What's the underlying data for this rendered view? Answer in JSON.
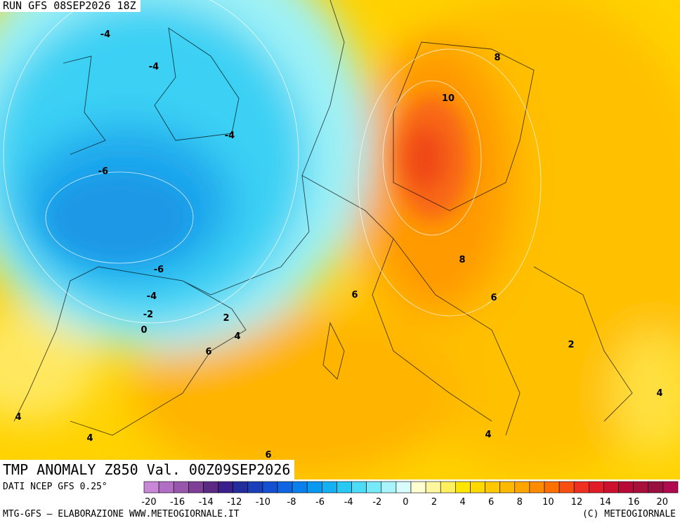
{
  "header": {
    "run": "RUN GFS 08SEP2026 18Z"
  },
  "map": {
    "title": "TMP ANOMALY Z850 Val. 00Z09SEP2026",
    "contour_labels": [
      -4,
      -4,
      -4,
      -6,
      -6,
      -4,
      -2,
      0,
      2,
      4,
      6,
      6,
      8,
      10,
      8,
      6,
      2,
      4,
      4,
      4,
      4,
      6
    ]
  },
  "legend": {
    "source": "DATI NCEP GFS 0.25°",
    "colors": [
      "#c987d8",
      "#b06fc4",
      "#9856ad",
      "#7e3f96",
      "#5b2b84",
      "#3b1f8a",
      "#232d9c",
      "#1a3fb8",
      "#1450d0",
      "#0f66e0",
      "#0a80ec",
      "#0a98f0",
      "#14b0f2",
      "#2cc8f4",
      "#4cdcf5",
      "#78eaf7",
      "#a8f4fa",
      "#d8fbfc",
      "#ffffd0",
      "#fff7a0",
      "#fff060",
      "#ffe600",
      "#ffd800",
      "#ffc800",
      "#ffb800",
      "#ffa500",
      "#ff8c00",
      "#ff7000",
      "#f85010",
      "#ee3020",
      "#e01c28",
      "#cc1030",
      "#b80a38",
      "#a8103c",
      "#981040",
      "#b00a50"
    ],
    "ticks": [
      -20,
      -16,
      -14,
      -12,
      -10,
      -8,
      -6,
      -4,
      -2,
      0,
      2,
      4,
      6,
      8,
      10,
      12,
      14,
      16,
      20
    ]
  },
  "footer": {
    "left": "MTG-GFS — ELABORAZIONE WWW.METEOGIORNALE.IT",
    "right": "(C) METEOGIORNALE"
  }
}
